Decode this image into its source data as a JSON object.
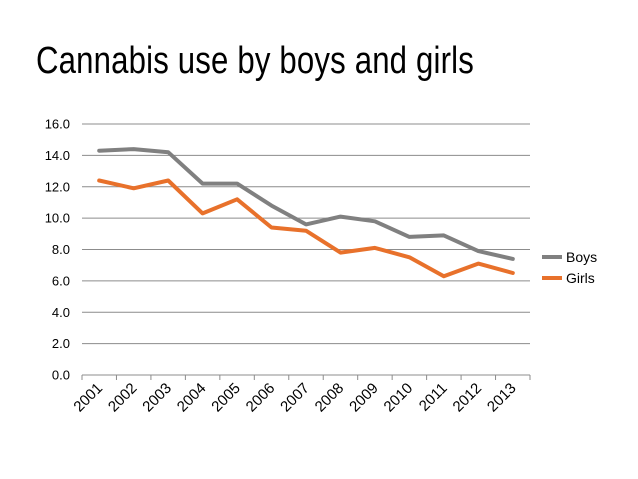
{
  "chart_data": {
    "type": "line",
    "title": "Cannabis use by boys and girls",
    "xlabel": "",
    "ylabel": "",
    "categories": [
      "2001",
      "2002",
      "2003",
      "2004",
      "2005",
      "2006",
      "2007",
      "2008",
      "2009",
      "2010",
      "2011",
      "2012",
      "2013"
    ],
    "yticks": [
      "0.0",
      "2.0",
      "4.0",
      "6.0",
      "8.0",
      "10.0",
      "12.0",
      "14.0",
      "16.0"
    ],
    "ylim": [
      0,
      16
    ],
    "grid": "horizontal",
    "legend_position": "right",
    "series": [
      {
        "name": "Boys",
        "color": "#808080",
        "values": [
          14.3,
          14.4,
          14.2,
          12.2,
          12.2,
          10.8,
          9.6,
          10.1,
          9.8,
          8.8,
          8.9,
          7.9,
          7.4
        ]
      },
      {
        "name": "Girls",
        "color": "#E8712B",
        "values": [
          12.4,
          11.9,
          12.4,
          10.3,
          11.2,
          9.4,
          9.2,
          7.8,
          8.1,
          7.5,
          6.3,
          7.1,
          6.5
        ]
      }
    ]
  }
}
